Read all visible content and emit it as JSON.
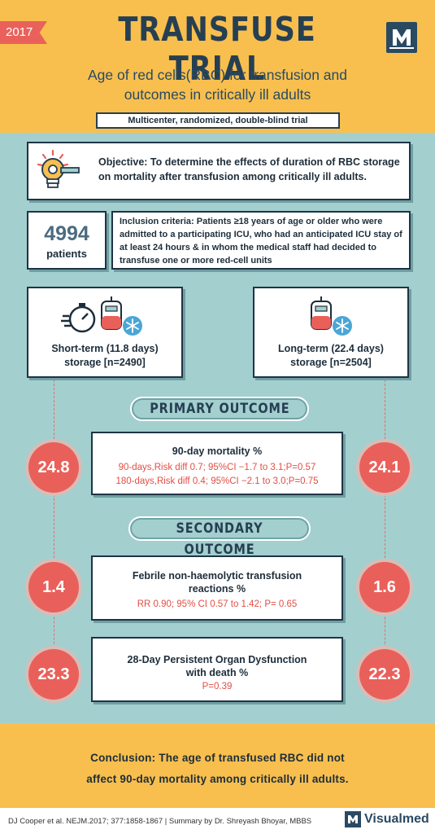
{
  "header": {
    "year": "2017",
    "title": "TRANSFUSE TRIAL",
    "subtitle_line1": "Age of red cells(RBC) for transfusion and",
    "subtitle_line2": "outcomes in critically ill adults",
    "design": "Multicenter, randomized, double-blind trial"
  },
  "objective": {
    "text": "Objective: To determine the effects of duration of RBC storage on mortality after transfusion among critically ill adults."
  },
  "patients": {
    "count": "4994",
    "label": "patients"
  },
  "inclusion": {
    "text": "Inclusion criteria: Patients ≥18 years of age or older who were admitted to a participating ICU, who had an anticipated ICU stay of at least 24 hours & in whom the medical staff had decided to transfuse one or more red-cell units"
  },
  "arms": {
    "short_line1": "Short-term (11.8 days)",
    "short_line2": "storage [n=2490]",
    "long_line1": "Long-term (22.4 days)",
    "long_line2": "storage [n=2504]"
  },
  "primary": {
    "banner": "PRIMARY OUTCOME",
    "title": "90-day mortality %",
    "line1": "90-days,Risk diff 0.7; 95%CI −1.7 to 3.1;P=0.57",
    "line2": "180-days,Risk diff 0.4; 95%CI −2.1 to 3.0;P=0.75",
    "short_value": "24.8",
    "long_value": "24.1"
  },
  "secondary": {
    "banner": "SECONDARY OUTCOME",
    "fnht_title1": "Febrile non-haemolytic transfusion",
    "fnht_title2": "reactions %",
    "fnht_stats": "RR 0.90; 95% CI 0.57 to 1.42; P= 0.65",
    "fnht_short": "1.4",
    "fnht_long": "1.6",
    "mod_title1": "28-Day Persistent Organ Dysfunction",
    "mod_title2": "with death %",
    "mod_stats": "P=0.39",
    "mod_short": "23.3",
    "mod_long": "22.3"
  },
  "conclusion": {
    "line1": "Conclusion: The age of transfused RBC did not",
    "line2": "affect 90-day mortality among critically ill adults."
  },
  "footer": {
    "citation": "DJ Cooper et al. NEJM.2017; 377:1858-1867  |  Summary by Dr. Shreyash Bhoyar, MBBS",
    "brand": "Visualmed"
  },
  "icons": [
    "lightbulb-gear-icon",
    "stopwatch-icon",
    "blood-bag-icon",
    "snowflake-icon",
    "m-logo-icon"
  ],
  "colors": {
    "accent_yellow": "#f8bf4e",
    "teal_background": "#a3cfcf",
    "navy": "#263f52",
    "value_red": "#e9605b"
  }
}
